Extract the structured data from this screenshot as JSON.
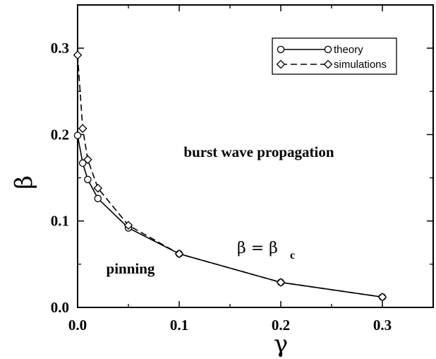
{
  "chart_data": {
    "type": "line",
    "xlabel": "γ",
    "ylabel": "β",
    "xlim": [
      0.0,
      0.35
    ],
    "ylim": [
      0.0,
      0.35
    ],
    "xticks": [
      "0.0",
      "0.1",
      "0.2",
      "0.3"
    ],
    "yticks": [
      "0.0",
      "0.1",
      "0.2",
      "0.3"
    ],
    "grid": false,
    "legend_position": "top-right",
    "series": [
      {
        "name": "theory",
        "style": "solid line, open circle markers",
        "x": [
          0.0,
          0.005,
          0.01,
          0.02,
          0.05,
          0.1,
          0.2,
          0.3
        ],
        "y": [
          0.199,
          0.167,
          0.148,
          0.126,
          0.092,
          0.062,
          0.029,
          0.012
        ]
      },
      {
        "name": "simulations",
        "style": "dashed line, open diamond markers",
        "x": [
          0.0,
          0.005,
          0.01,
          0.02,
          0.05,
          0.1,
          0.2,
          0.3
        ],
        "y": [
          0.292,
          0.207,
          0.171,
          0.138,
          0.095,
          0.062,
          0.029,
          0.012
        ]
      }
    ],
    "annotations": {
      "upper_region": "burst wave propagation",
      "lower_region": "pinning",
      "curve_main": "β = β",
      "curve_sub": "c"
    }
  }
}
